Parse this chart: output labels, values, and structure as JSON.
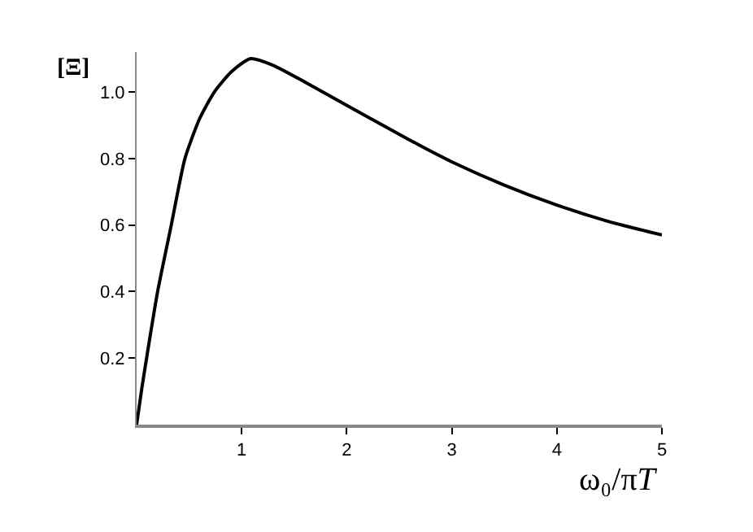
{
  "chart_data": {
    "type": "line",
    "xlabel": "ω₀/πT",
    "ylabel": "[Ξ]",
    "x": [
      0,
      0.05,
      0.1,
      0.2,
      0.33,
      0.46,
      0.6,
      0.74,
      0.9,
      1.08,
      1.3,
      1.6,
      2,
      2.4,
      2.75,
      3,
      3.5,
      4,
      4.5,
      5
    ],
    "series": [
      {
        "color": "#000000",
        "values": [
          0,
          0.11,
          0.21,
          0.4,
          0.6,
          0.8,
          0.92,
          1.0,
          1.06,
          1.1,
          1.08,
          1.03,
          0.96,
          0.89,
          0.83,
          0.79,
          0.72,
          0.66,
          0.61,
          0.57
        ]
      }
    ],
    "xlim": [
      0,
      5
    ],
    "ylim": [
      0,
      1.12
    ],
    "xticks": [
      1,
      2,
      3,
      4,
      5
    ],
    "yticks": [
      {
        "value": 0.2,
        "label": "0.2"
      },
      {
        "value": 0.4,
        "label": "0.4"
      },
      {
        "value": 0.6,
        "label": "0.6"
      },
      {
        "value": 0.8,
        "label": "0.8"
      },
      {
        "value": 1,
        "label": "1.0"
      }
    ],
    "marker": "none",
    "line_style": "solid"
  }
}
